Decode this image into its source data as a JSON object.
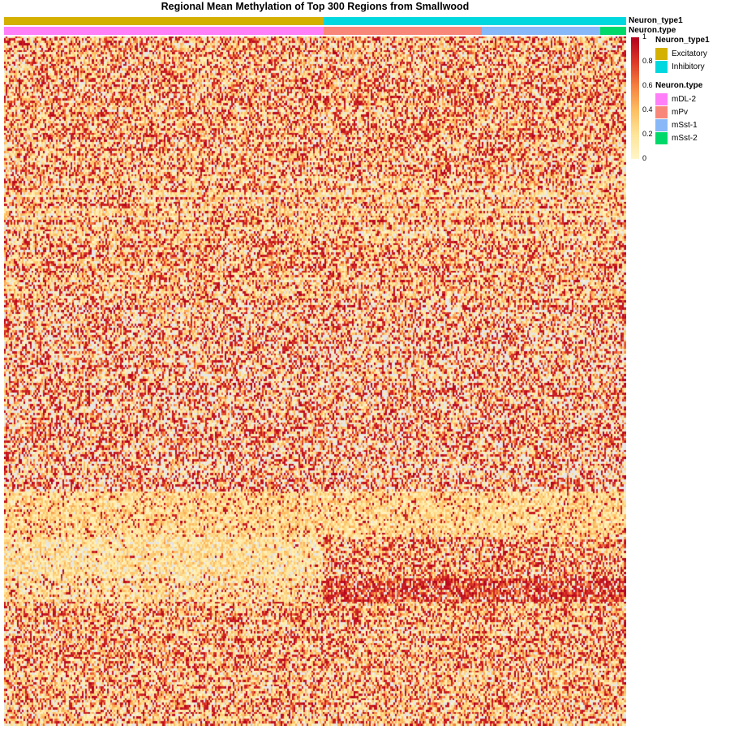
{
  "chart_data": {
    "type": "heatmap",
    "title": "Regional Mean Methylation of Top 300 Regions from Smallwood",
    "value_range": [
      0,
      1
    ],
    "na_color": "#e6e6e6",
    "color_scale": {
      "stops": [
        0,
        0.2,
        0.4,
        0.6,
        0.8,
        1
      ],
      "colors": [
        "#fff5c8",
        "#fee59a",
        "#fdbe62",
        "#f6803f",
        "#dc3727",
        "#b3001e"
      ],
      "tick_labels": [
        "0",
        "0.2",
        "0.4",
        "0.6",
        "0.8",
        "1"
      ]
    },
    "n_rows": 300,
    "n_cols": 380,
    "annotations": [
      {
        "name": "Neuron_type1",
        "levels": [
          {
            "label": "Excitatory",
            "color": "#d4b000",
            "count": 195
          },
          {
            "label": "Inhibitory",
            "color": "#00d8e0",
            "count": 185
          }
        ]
      },
      {
        "name": "Neuron.type",
        "levels": [
          {
            "label": "mDL-2",
            "color": "#ff7ff8",
            "count": 195
          },
          {
            "label": "mPv",
            "color": "#f8877a",
            "count": 97
          },
          {
            "label": "mSst-1",
            "color": "#88b8f8",
            "count": 72
          },
          {
            "label": "mSst-2",
            "color": "#00d86a",
            "count": 16
          }
        ]
      }
    ]
  }
}
